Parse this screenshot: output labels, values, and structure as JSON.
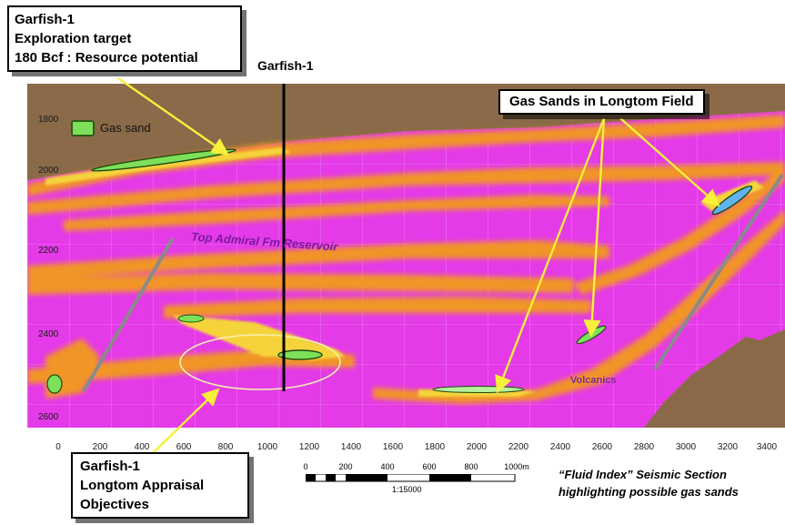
{
  "callouts": {
    "exploration": {
      "line1": "Garfish-1",
      "line2": "Exploration target",
      "line3": "180 Bcf  : Resource potential"
    },
    "appraisal": {
      "line1": "Garfish-1",
      "line2": "Longtom Appraisal",
      "line3": "Objectives"
    },
    "longtom": "Gas Sands in Longtom Field"
  },
  "well_label": "Garfish-1",
  "legend": {
    "label": "Gas sand",
    "color": "#7ee05a"
  },
  "annotations": {
    "top_admiral": "Top Admiral Fm Reservoir",
    "volcanics": "Volcanics"
  },
  "depth_axis": [
    "1800",
    "2000",
    "2200",
    "2400",
    "2600"
  ],
  "distance_axis": [
    "0",
    "200",
    "400",
    "600",
    "800",
    "1000",
    "1200",
    "1400",
    "1600",
    "1800",
    "2000",
    "2200",
    "2400",
    "2600",
    "2800",
    "3000",
    "3200",
    "3400"
  ],
  "scale_bar": {
    "ticks": [
      "0",
      "200",
      "400",
      "600",
      "800",
      "1000m"
    ],
    "ratio": "1:15000"
  },
  "caption": {
    "line1": "“Fluid Index” Seismic Section",
    "line2": "highlighting possible gas sands"
  },
  "colors": {
    "background_fill": "#e43ae8",
    "overburden": "#8a6a48",
    "anomaly_orange": "#f29a1e",
    "anomaly_yellow": "#f5d43a",
    "arrow_yellow": "#f6f03a",
    "fault_grey": "#8a8a8a",
    "well_line": "#000000"
  }
}
